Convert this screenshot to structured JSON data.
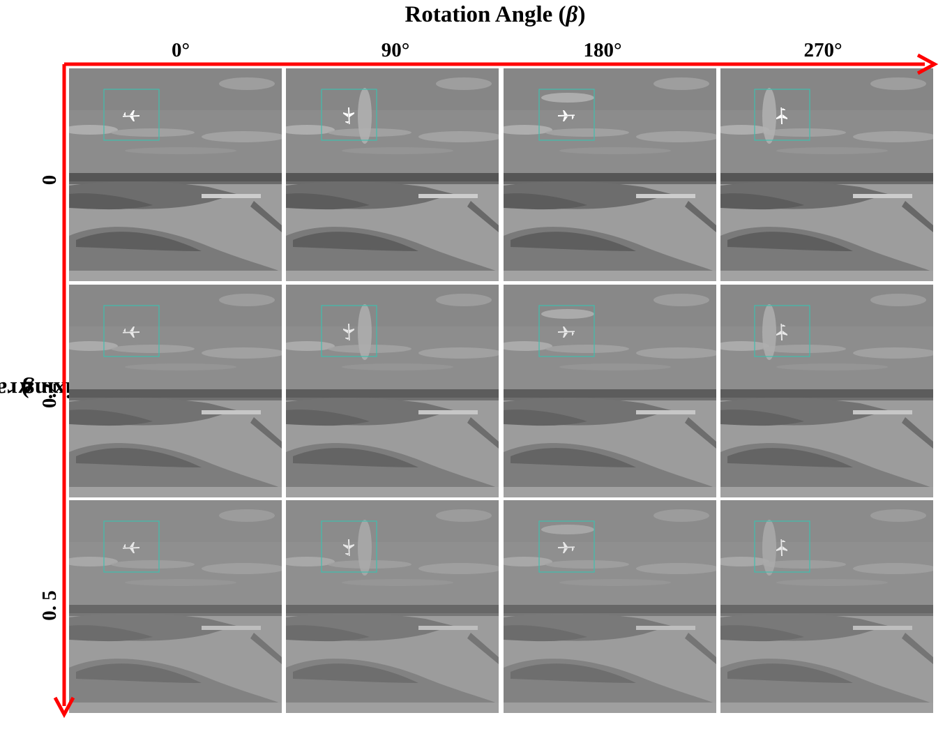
{
  "figure": {
    "title_text": "Rotation Angle (",
    "title_symbol": "β",
    "title_close": ")",
    "y_title_text": "Mixing ratio (",
    "y_title_symbol": "α",
    "y_title_close": ")",
    "columns": [
      {
        "label": "0°",
        "rotation_deg": 0
      },
      {
        "label": "90°",
        "rotation_deg": 90
      },
      {
        "label": "180°",
        "rotation_deg": 180
      },
      {
        "label": "270°",
        "rotation_deg": 270
      }
    ],
    "rows": [
      {
        "label": "0",
        "mixing_ratio": 0
      },
      {
        "label": "0.2",
        "mixing_ratio": 0.2
      },
      {
        "label": "0. 5",
        "mixing_ratio": 0.5
      }
    ],
    "colors": {
      "axis_arrow": "#ff0000",
      "target_box": "#3fbfae",
      "panel_border": "#ffffff"
    },
    "icons": {
      "target": "airplane-icon"
    }
  }
}
